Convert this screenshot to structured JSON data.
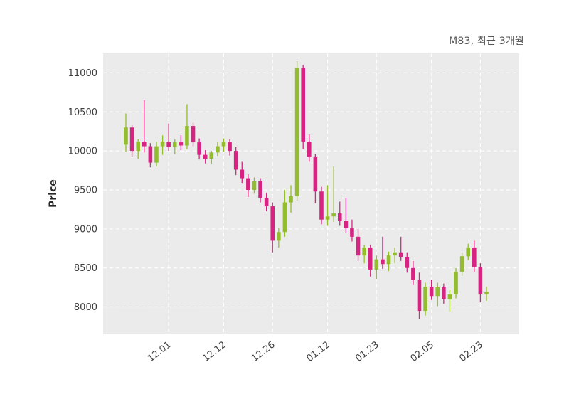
{
  "chart_data": {
    "type": "candlestick",
    "title": "M83, 최근 3개월",
    "ylabel": "Price",
    "xlabel": "",
    "ylim": [
      7650,
      11250
    ],
    "yticks": [
      8000,
      8500,
      9000,
      9500,
      10000,
      10500,
      11000
    ],
    "xtick_labels": [
      "12.01",
      "12.12",
      "12.26",
      "01.12",
      "01.23",
      "02.05",
      "02.23"
    ],
    "xtick_indices": [
      7,
      16,
      24,
      33,
      41,
      50,
      58
    ],
    "up_color": "#94bd2d",
    "down_color": "#d72483",
    "plot_bg": "#ebebeb",
    "grid_color": "#ffffff",
    "grid_style": "dashed",
    "legend": "none",
    "candles_note": "arrays are [open, high, low, close]",
    "candles": [
      [
        10080,
        10480,
        9990,
        10300
      ],
      [
        10300,
        10330,
        9920,
        10000
      ],
      [
        10000,
        10150,
        9900,
        10120
      ],
      [
        10120,
        10650,
        9980,
        10060
      ],
      [
        10060,
        10100,
        9790,
        9850
      ],
      [
        9850,
        10120,
        9800,
        10060
      ],
      [
        10060,
        10200,
        9950,
        10120
      ],
      [
        10120,
        10350,
        10000,
        10050
      ],
      [
        10050,
        10150,
        9960,
        10110
      ],
      [
        10110,
        10200,
        10010,
        10070
      ],
      [
        10070,
        10600,
        10020,
        10320
      ],
      [
        10320,
        10360,
        10060,
        10110
      ],
      [
        10110,
        10160,
        9890,
        9950
      ],
      [
        9950,
        10010,
        9840,
        9900
      ],
      [
        9900,
        10000,
        9830,
        9980
      ],
      [
        9980,
        10110,
        9930,
        10060
      ],
      [
        10060,
        10160,
        9990,
        10110
      ],
      [
        10110,
        10150,
        9940,
        10000
      ],
      [
        10000,
        10050,
        9690,
        9760
      ],
      [
        9760,
        9860,
        9590,
        9650
      ],
      [
        9650,
        9700,
        9410,
        9500
      ],
      [
        9500,
        9660,
        9450,
        9610
      ],
      [
        9610,
        9650,
        9340,
        9400
      ],
      [
        9400,
        9460,
        9230,
        9290
      ],
      [
        9290,
        9340,
        8700,
        8850
      ],
      [
        8850,
        9010,
        8760,
        8960
      ],
      [
        8960,
        9500,
        8900,
        9340
      ],
      [
        9340,
        9560,
        9210,
        9420
      ],
      [
        9420,
        11150,
        9360,
        11060
      ],
      [
        11060,
        11100,
        10020,
        10120
      ],
      [
        10120,
        10210,
        9860,
        9920
      ],
      [
        9920,
        9960,
        9330,
        9480
      ],
      [
        9480,
        9540,
        9060,
        9120
      ],
      [
        9120,
        9560,
        9040,
        9160
      ],
      [
        9160,
        9800,
        9090,
        9200
      ],
      [
        9200,
        9350,
        9040,
        9100
      ],
      [
        9100,
        9400,
        8950,
        9010
      ],
      [
        9010,
        9120,
        8840,
        8900
      ],
      [
        8900,
        9000,
        8590,
        8660
      ],
      [
        8660,
        8800,
        8560,
        8760
      ],
      [
        8760,
        8800,
        8390,
        8480
      ],
      [
        8480,
        8660,
        8360,
        8610
      ],
      [
        8610,
        8900,
        8490,
        8550
      ],
      [
        8550,
        8710,
        8460,
        8660
      ],
      [
        8660,
        8760,
        8560,
        8700
      ],
      [
        8700,
        8900,
        8590,
        8640
      ],
      [
        8640,
        8700,
        8440,
        8500
      ],
      [
        8500,
        8590,
        8290,
        8350
      ],
      [
        8350,
        8440,
        7850,
        7950
      ],
      [
        7950,
        8310,
        7890,
        8260
      ],
      [
        8260,
        8350,
        8090,
        8140
      ],
      [
        8140,
        8310,
        8010,
        8260
      ],
      [
        8260,
        8300,
        8040,
        8100
      ],
      [
        8100,
        8220,
        7940,
        8160
      ],
      [
        8160,
        8500,
        8110,
        8450
      ],
      [
        8450,
        8700,
        8400,
        8650
      ],
      [
        8650,
        8810,
        8600,
        8760
      ],
      [
        8760,
        8850,
        8450,
        8510
      ],
      [
        8510,
        8560,
        8060,
        8160
      ],
      [
        8160,
        8260,
        8080,
        8190
      ]
    ]
  }
}
